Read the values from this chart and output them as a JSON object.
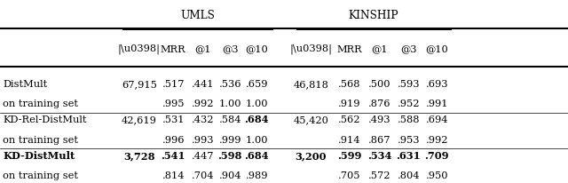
{
  "title_umls": "UMLS",
  "title_kinship": "KINSHIP",
  "rows": [
    {
      "label": "DistMult",
      "label2": "on training set",
      "umls": [
        "67,915",
        ".517",
        ".441",
        ".536",
        ".659"
      ],
      "umls2": [
        "",
        ".995",
        ".992",
        "1.00",
        "1.00"
      ],
      "kinship": [
        "46,818",
        ".568",
        ".500",
        ".593",
        ".693"
      ],
      "kinship2": [
        "",
        ".919",
        ".876",
        ".952",
        ".991"
      ],
      "bold_umls": [
        false,
        false,
        false,
        false,
        false
      ],
      "bold_kinship": [
        false,
        false,
        false,
        false,
        false
      ],
      "bold_label": false
    },
    {
      "label": "KD-Rel-DistMult",
      "label2": "on training set",
      "umls": [
        "42,619",
        ".531",
        ".432",
        ".584",
        ".684"
      ],
      "umls2": [
        "",
        ".996",
        ".993",
        ".999",
        "1.00"
      ],
      "kinship": [
        "45,420",
        ".562",
        ".493",
        ".588",
        ".694"
      ],
      "kinship2": [
        "",
        ".914",
        ".867",
        ".953",
        ".992"
      ],
      "bold_umls": [
        false,
        false,
        false,
        false,
        true
      ],
      "bold_kinship": [
        false,
        false,
        false,
        false,
        false
      ],
      "bold_label": false
    },
    {
      "label": "KD-DistMult",
      "label2": "on training set",
      "umls": [
        "3,728",
        ".541",
        ".447",
        ".598",
        ".684"
      ],
      "umls2": [
        "",
        ".814",
        ".704",
        ".904",
        ".989"
      ],
      "kinship": [
        "3,200",
        ".599",
        ".534",
        ".631",
        ".709"
      ],
      "kinship2": [
        "",
        ".705",
        ".572",
        ".804",
        ".950"
      ],
      "bold_umls": [
        true,
        true,
        false,
        true,
        true
      ],
      "bold_kinship": [
        true,
        true,
        true,
        true,
        true
      ],
      "bold_label": true
    }
  ],
  "col_headers": [
    "|\\u0398|",
    "MRR",
    "@1",
    "@3",
    "@10"
  ],
  "figsize": [
    6.4,
    2.06
  ],
  "dpi": 100,
  "font_size": 8.2,
  "font_family": "DejaVu Serif"
}
